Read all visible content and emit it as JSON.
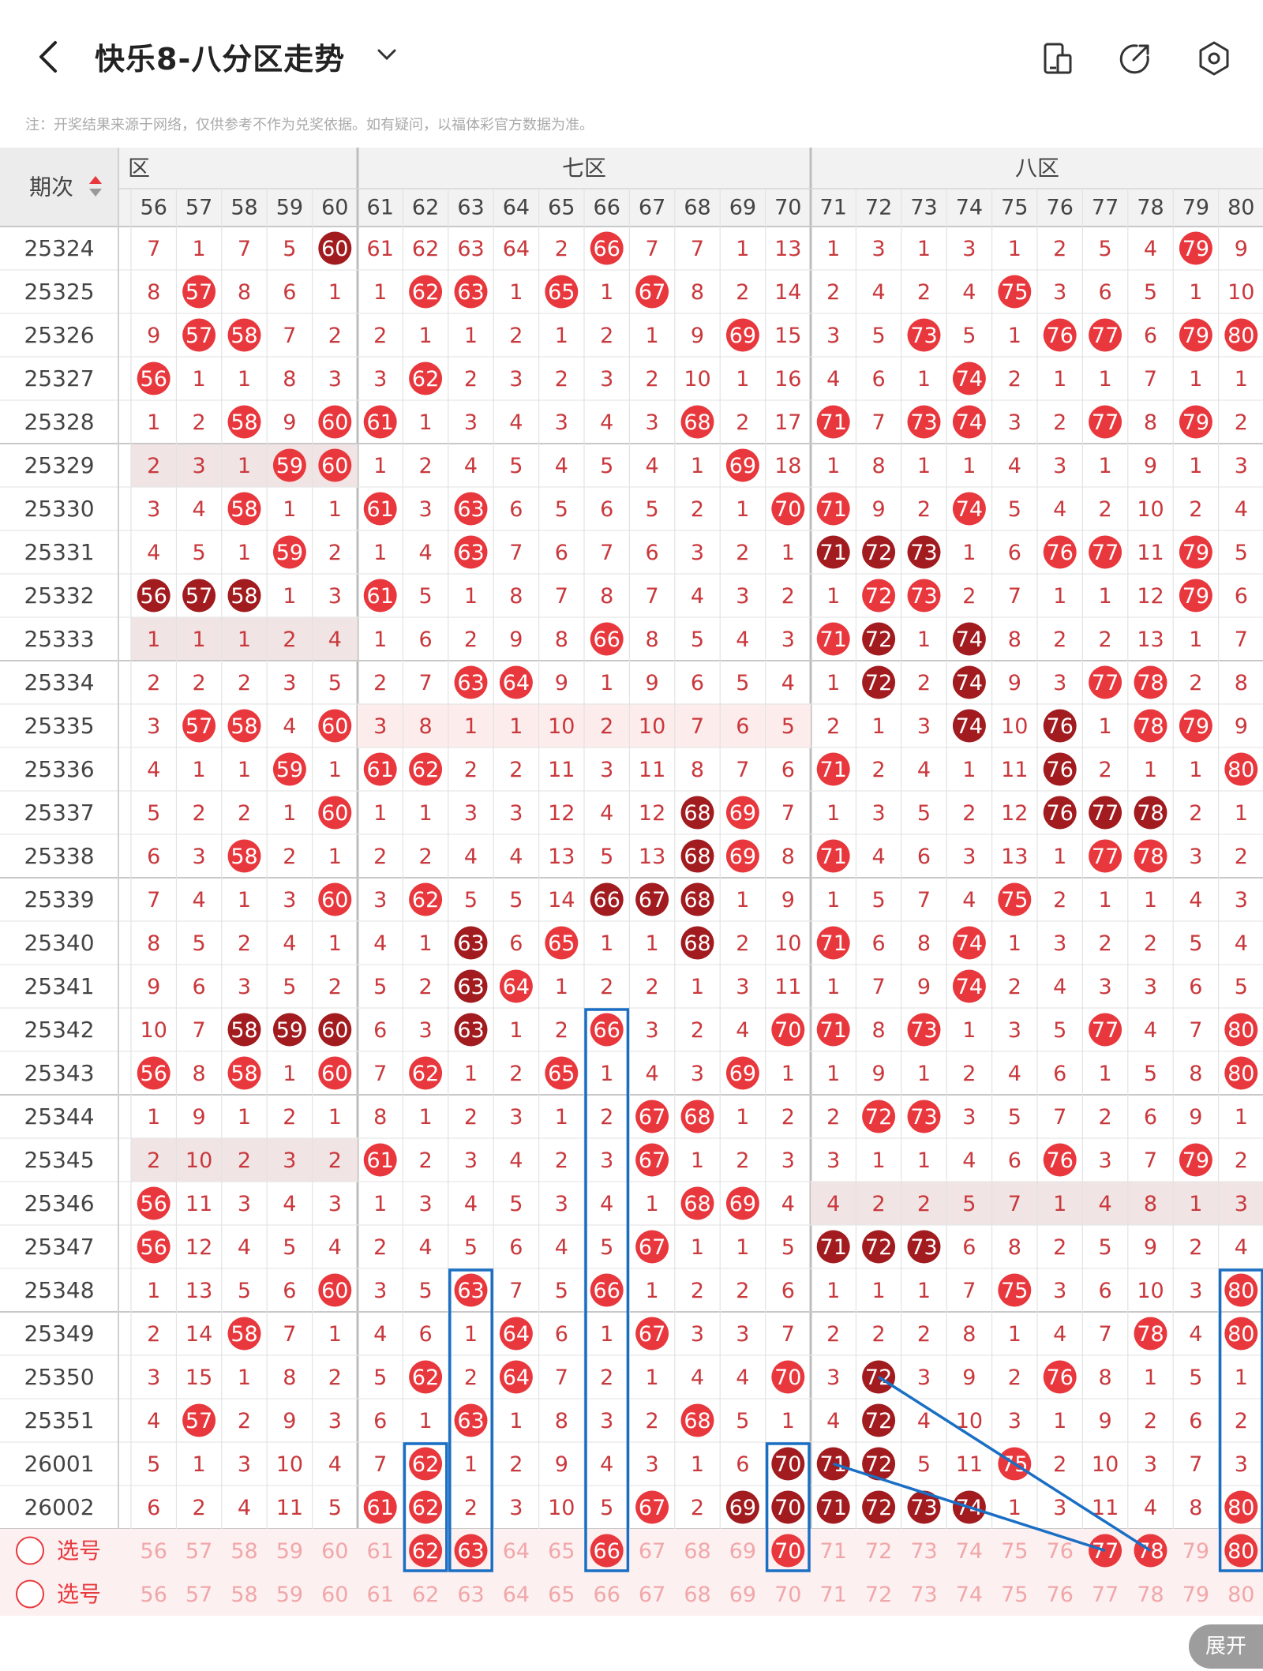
{
  "header": {
    "title": "快乐8-八分区走势",
    "note": "注：开奖结果来源于网络，仅供参考不作为兑奖依据。如有疑问，以福体彩官方数据为准。"
  },
  "table": {
    "period_header": "期次",
    "zones": [
      {
        "label": "六区",
        "shown": "区"
      },
      {
        "label": "七区",
        "shown": "七区"
      },
      {
        "label": "八区",
        "shown": "八区"
      }
    ],
    "columns": [
      56,
      57,
      58,
      59,
      60,
      61,
      62,
      63,
      64,
      65,
      66,
      67,
      68,
      69,
      70,
      71,
      72,
      73,
      74,
      75,
      76,
      77,
      78,
      79,
      80
    ],
    "rows": [
      {
        "period": "25324",
        "cells": [
          7,
          1,
          7,
          5,
          "60",
          61,
          62,
          63,
          64,
          2,
          "66",
          7,
          7,
          1,
          13,
          1,
          3,
          1,
          3,
          1,
          2,
          5,
          4,
          "79",
          9
        ],
        "dark": [
          60,
          61,
          62,
          63,
          64
        ]
      },
      {
        "period": "25325",
        "cells": [
          8,
          "57",
          8,
          6,
          1,
          1,
          "62",
          "63",
          1,
          "65",
          1,
          "67",
          8,
          2,
          14,
          2,
          4,
          2,
          4,
          "75",
          3,
          6,
          5,
          1,
          10
        ],
        "dark": []
      },
      {
        "period": "25326",
        "cells": [
          9,
          "57",
          "58",
          7,
          2,
          2,
          1,
          1,
          2,
          1,
          2,
          1,
          9,
          "69",
          15,
          3,
          5,
          "73",
          5,
          1,
          "76",
          "77",
          6,
          "79",
          "80"
        ],
        "dark": []
      },
      {
        "period": "25327",
        "cells": [
          "56",
          1,
          1,
          8,
          3,
          3,
          "62",
          2,
          3,
          2,
          3,
          2,
          10,
          1,
          16,
          4,
          6,
          1,
          "74",
          2,
          1,
          1,
          7,
          1,
          1
        ],
        "dark": []
      },
      {
        "period": "25328",
        "cells": [
          1,
          2,
          "58",
          9,
          "60",
          "61",
          1,
          3,
          4,
          3,
          4,
          3,
          "68",
          2,
          17,
          "71",
          7,
          "73",
          "74",
          3,
          2,
          "77",
          8,
          "79",
          2
        ],
        "dark": []
      },
      {
        "period": "25329",
        "cells": [
          2,
          3,
          1,
          "59",
          "60",
          1,
          2,
          4,
          5,
          4,
          5,
          4,
          1,
          "69",
          18,
          1,
          8,
          1,
          1,
          4,
          3,
          1,
          9,
          1,
          3
        ],
        "dark": []
      },
      {
        "period": "25330",
        "cells": [
          3,
          4,
          "58",
          1,
          1,
          "61",
          3,
          "63",
          6,
          5,
          6,
          5,
          2,
          1,
          "70",
          "71",
          9,
          2,
          "74",
          5,
          4,
          2,
          10,
          2,
          4
        ],
        "dark": []
      },
      {
        "period": "25331",
        "cells": [
          4,
          5,
          1,
          "59",
          2,
          1,
          4,
          "63",
          7,
          6,
          7,
          6,
          3,
          2,
          1,
          "71",
          "72",
          "73",
          1,
          6,
          "76",
          "77",
          11,
          "79",
          5
        ],
        "dark": [
          71,
          72,
          73
        ]
      },
      {
        "period": "25332",
        "cells": [
          "56",
          "57",
          "58",
          1,
          3,
          "61",
          5,
          1,
          8,
          7,
          8,
          7,
          4,
          3,
          2,
          1,
          "72",
          "73",
          2,
          7,
          1,
          1,
          12,
          "79",
          6
        ],
        "dark": [
          56,
          57,
          58
        ]
      },
      {
        "period": "25333",
        "cells": [
          1,
          1,
          1,
          2,
          4,
          1,
          6,
          2,
          9,
          8,
          "66",
          8,
          5,
          4,
          3,
          "71",
          "72",
          1,
          "74",
          8,
          2,
          2,
          13,
          1,
          7
        ],
        "dark": [
          72,
          74
        ]
      },
      {
        "period": "25334",
        "cells": [
          2,
          2,
          2,
          3,
          5,
          2,
          7,
          "63",
          "64",
          9,
          1,
          9,
          6,
          5,
          4,
          1,
          "72",
          2,
          "74",
          9,
          3,
          "77",
          "78",
          2,
          8
        ],
        "dark": [
          72,
          74
        ]
      },
      {
        "period": "25335",
        "cells": [
          3,
          "57",
          "58",
          4,
          "60",
          3,
          8,
          1,
          1,
          10,
          2,
          10,
          7,
          6,
          5,
          2,
          1,
          3,
          "74",
          10,
          "76",
          1,
          "78",
          "79",
          9
        ],
        "dark": [
          74,
          76
        ]
      },
      {
        "period": "25336",
        "cells": [
          4,
          1,
          1,
          "59",
          1,
          "61",
          "62",
          2,
          2,
          11,
          3,
          11,
          8,
          7,
          6,
          "71",
          2,
          4,
          1,
          11,
          "76",
          2,
          1,
          1,
          "80"
        ],
        "dark": [
          76
        ]
      },
      {
        "period": "25337",
        "cells": [
          5,
          2,
          2,
          1,
          "60",
          1,
          1,
          3,
          3,
          12,
          4,
          12,
          "68",
          "69",
          7,
          1,
          3,
          5,
          2,
          12,
          "76",
          "77",
          "78",
          2,
          1
        ],
        "dark": [
          68,
          76,
          77,
          78
        ]
      },
      {
        "period": "25338",
        "cells": [
          6,
          3,
          "58",
          2,
          1,
          2,
          2,
          4,
          4,
          13,
          5,
          13,
          "68",
          "69",
          8,
          "71",
          4,
          6,
          3,
          13,
          1,
          "77",
          "78",
          3,
          2
        ],
        "dark": [
          68
        ]
      },
      {
        "period": "25339",
        "cells": [
          7,
          4,
          1,
          3,
          "60",
          3,
          "62",
          5,
          5,
          14,
          "66",
          "67",
          "68",
          1,
          9,
          1,
          5,
          7,
          4,
          "75",
          2,
          1,
          1,
          4,
          3
        ],
        "dark": [
          66,
          67,
          68
        ]
      },
      {
        "period": "25340",
        "cells": [
          8,
          5,
          2,
          4,
          1,
          4,
          1,
          "63",
          6,
          "65",
          1,
          1,
          "68",
          2,
          10,
          "71",
          6,
          8,
          "74",
          1,
          3,
          2,
          2,
          5,
          4
        ],
        "dark": [
          63,
          68
        ]
      },
      {
        "period": "25341",
        "cells": [
          9,
          6,
          3,
          5,
          2,
          5,
          2,
          "63",
          "64",
          1,
          2,
          2,
          1,
          3,
          11,
          1,
          7,
          9,
          "74",
          2,
          4,
          3,
          3,
          6,
          5
        ],
        "dark": [
          63
        ]
      },
      {
        "period": "25342",
        "cells": [
          10,
          7,
          "58",
          "59",
          "60",
          6,
          3,
          "63",
          1,
          2,
          "66",
          3,
          2,
          4,
          "70",
          "71",
          8,
          "73",
          1,
          3,
          5,
          "77",
          4,
          7,
          "80"
        ],
        "dark": [
          58,
          59,
          60,
          63
        ]
      },
      {
        "period": "25343",
        "cells": [
          "56",
          8,
          "58",
          1,
          "60",
          7,
          "62",
          1,
          2,
          "65",
          1,
          4,
          3,
          "69",
          1,
          1,
          9,
          1,
          2,
          4,
          6,
          1,
          5,
          8,
          "80"
        ],
        "dark": []
      },
      {
        "period": "25344",
        "cells": [
          1,
          9,
          1,
          2,
          1,
          8,
          1,
          2,
          3,
          1,
          2,
          "67",
          "68",
          1,
          2,
          2,
          "72",
          "73",
          3,
          5,
          7,
          2,
          6,
          9,
          1
        ],
        "dark": []
      },
      {
        "period": "25345",
        "cells": [
          2,
          10,
          2,
          3,
          2,
          "61",
          2,
          3,
          4,
          2,
          3,
          "67",
          1,
          2,
          3,
          3,
          1,
          1,
          4,
          6,
          "76",
          3,
          7,
          "79",
          2
        ],
        "dark": []
      },
      {
        "period": "25346",
        "cells": [
          "56",
          11,
          3,
          4,
          3,
          1,
          3,
          4,
          5,
          3,
          4,
          1,
          "68",
          "69",
          4,
          4,
          2,
          2,
          5,
          7,
          1,
          4,
          8,
          1,
          3
        ],
        "dark": []
      },
      {
        "period": "25347",
        "cells": [
          "56",
          12,
          4,
          5,
          4,
          2,
          4,
          5,
          6,
          4,
          5,
          "67",
          1,
          1,
          5,
          "71",
          "72",
          "73",
          6,
          8,
          2,
          5,
          9,
          2,
          4
        ],
        "dark": [
          71,
          72,
          73
        ]
      },
      {
        "period": "25348",
        "cells": [
          1,
          13,
          5,
          6,
          "60",
          3,
          5,
          "63",
          7,
          5,
          "66",
          1,
          2,
          2,
          6,
          1,
          1,
          1,
          7,
          "75",
          3,
          6,
          10,
          3,
          "80"
        ],
        "dark": []
      },
      {
        "period": "25349",
        "cells": [
          2,
          14,
          "58",
          7,
          1,
          4,
          6,
          1,
          "64",
          6,
          1,
          "67",
          3,
          3,
          7,
          2,
          2,
          2,
          8,
          1,
          4,
          7,
          "78",
          4,
          "80"
        ],
        "dark": []
      },
      {
        "period": "25350",
        "cells": [
          3,
          15,
          1,
          8,
          2,
          5,
          "62",
          2,
          "64",
          7,
          2,
          1,
          4,
          4,
          "70",
          3,
          "72",
          3,
          9,
          2,
          "76",
          8,
          1,
          5,
          1
        ],
        "dark": [
          72
        ]
      },
      {
        "period": "25351",
        "cells": [
          4,
          "57",
          2,
          9,
          3,
          6,
          1,
          "63",
          1,
          8,
          3,
          2,
          "68",
          5,
          1,
          4,
          "72",
          4,
          10,
          3,
          1,
          9,
          2,
          6,
          2
        ],
        "dark": [
          72
        ]
      },
      {
        "period": "26001",
        "cells": [
          5,
          1,
          3,
          10,
          4,
          7,
          "62",
          1,
          2,
          9,
          4,
          3,
          1,
          6,
          "70",
          "71",
          "72",
          5,
          11,
          "75",
          2,
          10,
          3,
          7,
          3
        ],
        "dark": [
          70,
          71,
          72
        ]
      },
      {
        "period": "26002",
        "cells": [
          6,
          2,
          4,
          11,
          5,
          "61",
          "62",
          2,
          3,
          10,
          5,
          "67",
          2,
          "69",
          "70",
          "71",
          "72",
          "73",
          "74",
          1,
          3,
          11,
          4,
          8,
          "80"
        ],
        "dark": [
          69,
          70,
          71,
          72,
          73,
          74
        ]
      }
    ],
    "select_rows": [
      {
        "label": "选号",
        "selected": [
          62,
          63,
          66,
          70,
          77,
          78,
          80
        ]
      },
      {
        "label": "选号",
        "selected": []
      }
    ],
    "footer_zones": [
      "区",
      "七区",
      "八区"
    ]
  },
  "expand_label": "展开",
  "colors": {
    "red": "#e8383d",
    "dark_red": "#a11b1f",
    "blue_box": "#1a6fc4",
    "pink_text": "#f0a7aa",
    "grid": "#e0e0e0"
  }
}
